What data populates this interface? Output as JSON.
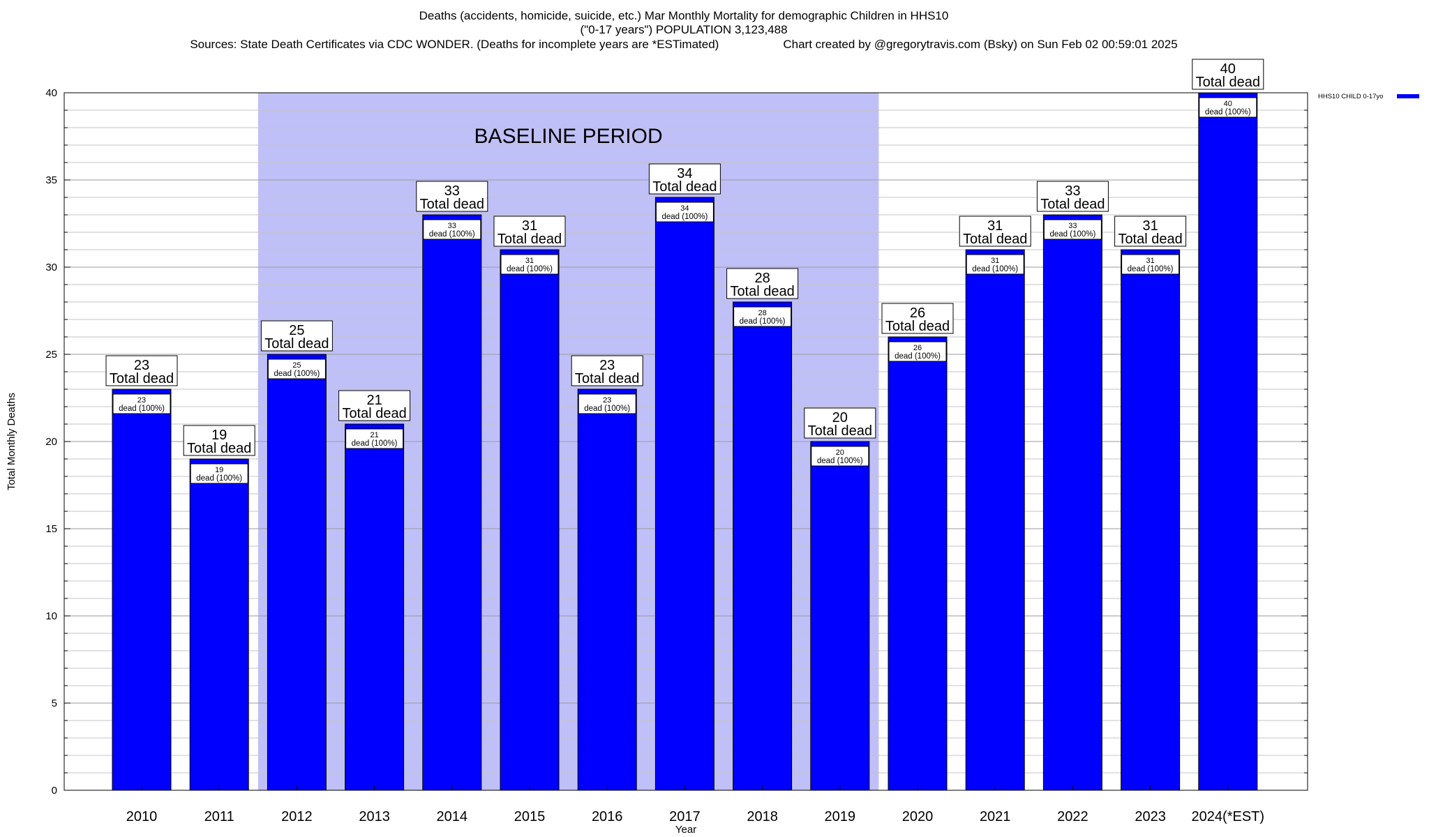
{
  "chart_data": {
    "type": "bar",
    "title": "Deaths (accidents, homicide, suicide, etc.) Mar Monthly Mortality for demographic Children in HHS10",
    "subtitle": "(\"0-17 years\") POPULATION 3,123,488",
    "source": "Sources: State Death Certificates via CDC WONDER. (Deaths for incomplete years are *ESTimated)",
    "credit": "Chart created by @gregorytravis.com (Bsky) on Sun Feb 02 00:59:01 2025",
    "xlabel": "Year",
    "ylabel": "Total Monthly Deaths",
    "ylim": [
      0,
      40
    ],
    "yticks": [
      0,
      5,
      10,
      15,
      20,
      25,
      30,
      35,
      40
    ],
    "grid": true,
    "legend_position": "top-right",
    "categories": [
      "2010",
      "2011",
      "2012",
      "2013",
      "2014",
      "2015",
      "2016",
      "2017",
      "2018",
      "2019",
      "2020",
      "2021",
      "2022",
      "2023",
      "2024(*EST)"
    ],
    "series": [
      {
        "name": "HHS10 CHILD 0-17yo",
        "color": "#0000ff",
        "values": [
          23,
          19,
          25,
          21,
          33,
          31,
          23,
          34,
          28,
          20,
          26,
          31,
          33,
          31,
          40
        ]
      }
    ],
    "total_label": "Total dead",
    "inner_label": "dead (100%)",
    "shaded_region": {
      "label": "BASELINE PERIOD",
      "from": "2012",
      "to": "2019",
      "color": "#c0c0f8"
    }
  }
}
